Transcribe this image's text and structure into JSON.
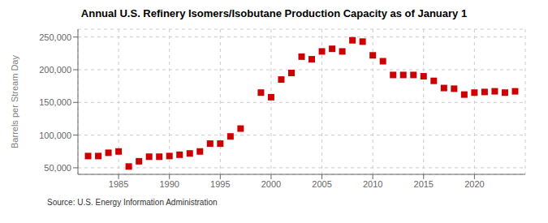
{
  "chart_data": {
    "type": "scatter",
    "title": "Annual U.S. Refinery Isomers/Isobutane Production Capacity as of January 1",
    "ylabel": "Barrels per Stream Day",
    "source": "Source: U.S. Energy Information Administration",
    "x": [
      1982,
      1983,
      1984,
      1985,
      1986,
      1987,
      1988,
      1989,
      1990,
      1991,
      1992,
      1993,
      1994,
      1995,
      1996,
      1997,
      1999,
      2000,
      2001,
      2002,
      2003,
      2004,
      2005,
      2006,
      2007,
      2008,
      2009,
      2010,
      2011,
      2012,
      2013,
      2014,
      2015,
      2016,
      2017,
      2018,
      2019,
      2020,
      2021,
      2022,
      2023,
      2024
    ],
    "values": [
      68000,
      68000,
      73000,
      75000,
      52000,
      60000,
      67000,
      67000,
      68000,
      70000,
      72000,
      75000,
      87000,
      87000,
      98000,
      110000,
      165000,
      158000,
      185000,
      195000,
      220000,
      216000,
      228000,
      232000,
      228000,
      245000,
      243000,
      222000,
      213000,
      192000,
      192000,
      192000,
      190000,
      183000,
      172000,
      171000,
      162000,
      165000,
      166000,
      167000,
      165000,
      167000
    ],
    "color": "#cc0000",
    "marker": "square",
    "grid": true,
    "xlim": [
      1981,
      2025
    ],
    "xticks": [
      1985,
      1990,
      1995,
      2000,
      2005,
      2010,
      2015,
      2020
    ],
    "ylim": [
      40000,
      262000
    ],
    "yticks": [
      {
        "value": 50000,
        "label": "50,000"
      },
      {
        "value": 100000,
        "label": "100,000"
      },
      {
        "value": 150000,
        "label": "150,000"
      },
      {
        "value": 200000,
        "label": "200,000"
      },
      {
        "value": 250000,
        "label": "250,000"
      }
    ]
  }
}
